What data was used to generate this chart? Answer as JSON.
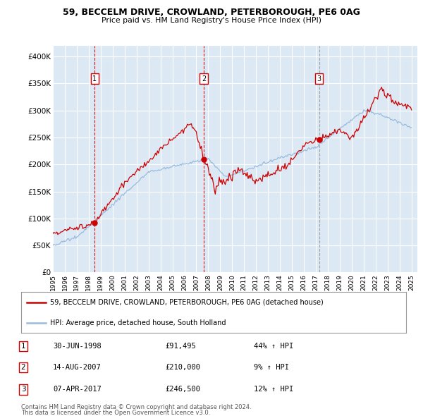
{
  "title1": "59, BECCELM DRIVE, CROWLAND, PETERBOROUGH, PE6 0AG",
  "title2": "Price paid vs. HM Land Registry's House Price Index (HPI)",
  "ylabel_ticks": [
    "£0",
    "£50K",
    "£100K",
    "£150K",
    "£200K",
    "£250K",
    "£300K",
    "£350K",
    "£400K"
  ],
  "ytick_values": [
    0,
    50000,
    100000,
    150000,
    200000,
    250000,
    300000,
    350000,
    400000
  ],
  "ylim": [
    0,
    420000
  ],
  "xlim_start": 1995.0,
  "xlim_end": 2025.5,
  "bg_color": "#dce9f5",
  "line_color_price": "#cc0000",
  "line_color_hpi": "#99bbdd",
  "grid_color": "#ffffff",
  "purchases": [
    {
      "date_num": 1998.5,
      "price": 91495,
      "label": "1",
      "vline_style": "dashed_red"
    },
    {
      "date_num": 2007.62,
      "price": 210000,
      "label": "2",
      "vline_style": "dashed_red"
    },
    {
      "date_num": 2017.27,
      "price": 246500,
      "label": "3",
      "vline_style": "dashed_gray"
    }
  ],
  "legend_entries": [
    "59, BECCELM DRIVE, CROWLAND, PETERBOROUGH, PE6 0AG (detached house)",
    "HPI: Average price, detached house, South Holland"
  ],
  "table_rows": [
    [
      "1",
      "30-JUN-1998",
      "£91,495",
      "44% ↑ HPI"
    ],
    [
      "2",
      "14-AUG-2007",
      "£210,000",
      "9% ↑ HPI"
    ],
    [
      "3",
      "07-APR-2017",
      "£246,500",
      "12% ↑ HPI"
    ]
  ],
  "footnote1": "Contains HM Land Registry data © Crown copyright and database right 2024.",
  "footnote2": "This data is licensed under the Open Government Licence v3.0."
}
